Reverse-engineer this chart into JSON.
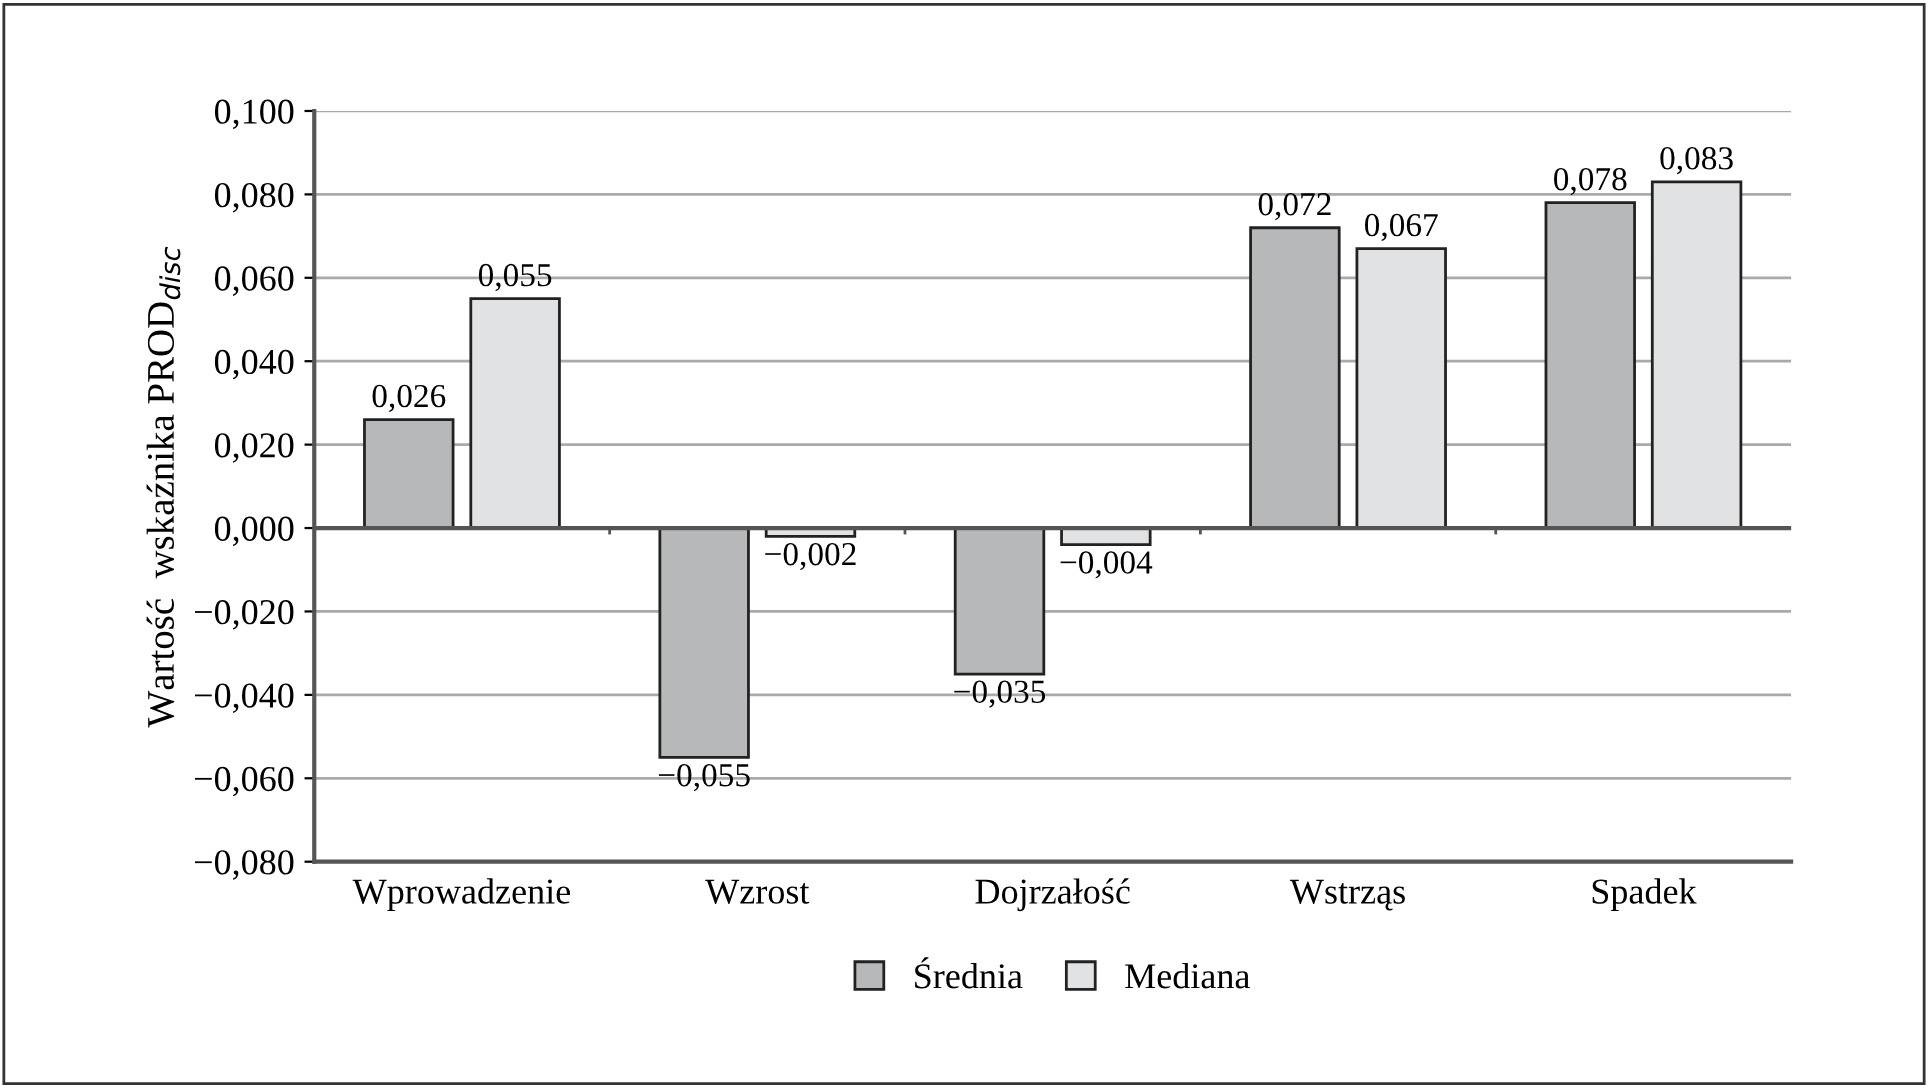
{
  "chart_data": {
    "type": "bar",
    "ylabel": "Wartość  wskaźnika PROD$_{disc}$",
    "categories": [
      "Wprowadzenie",
      "Wzrost",
      "Dojrzałość",
      "Wstrząs",
      "Spadek"
    ],
    "series": [
      {
        "name": "Średnia",
        "color": "#b7b8ba",
        "values": [
          0.026,
          -0.055,
          -0.035,
          0.072,
          0.078
        ],
        "value_labels": [
          "0,026",
          "−0,055",
          "−0,035",
          "0,072",
          "0,078"
        ]
      },
      {
        "name": "Mediana",
        "color": "#e1e2e3",
        "values": [
          0.055,
          -0.002,
          -0.004,
          0.067,
          0.083
        ],
        "value_labels": [
          "0,055",
          "−0,002",
          "−0,004",
          "0,067",
          "0,083"
        ]
      }
    ],
    "ylim": [
      -0.08,
      0.1
    ],
    "yticks": [
      {
        "value": -0.08,
        "label": "−0,080"
      },
      {
        "value": -0.06,
        "label": "−0,060"
      },
      {
        "value": -0.04,
        "label": "−0,040"
      },
      {
        "value": -0.02,
        "label": "−0,020"
      },
      {
        "value": 0,
        "label": "0,000"
      },
      {
        "value": 0.02,
        "label": "0,020"
      },
      {
        "value": 0.04,
        "label": "0,040"
      },
      {
        "value": 0.06,
        "label": "0,060"
      },
      {
        "value": 0.08,
        "label": "0,080"
      },
      {
        "value": 0.1,
        "label": "0,100"
      }
    ],
    "grid": "y",
    "legend": "bottom"
  }
}
